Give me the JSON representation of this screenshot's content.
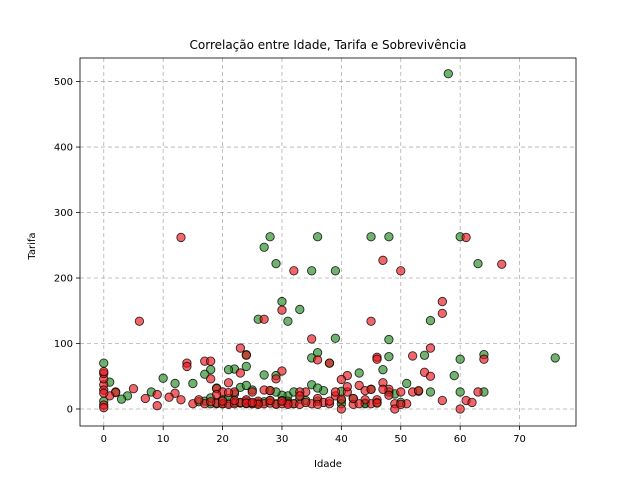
{
  "chart_data": {
    "type": "scatter",
    "title": "Correlação entre Idade, Tarifa e Sobrevivência",
    "xlabel": "Idade",
    "ylabel": "Tarifa",
    "xlim": [
      -4,
      79.5
    ],
    "ylim": [
      -26,
      536
    ],
    "xticks": [
      0,
      10,
      20,
      30,
      40,
      50,
      60,
      70
    ],
    "yticks": [
      0,
      100,
      200,
      300,
      400,
      500
    ],
    "grid": true,
    "colors": {
      "survived": "#228b22",
      "died": "#e8141a",
      "edge": "#000000"
    },
    "series": [
      {
        "key": "survived",
        "points": [
          [
            58,
            512
          ],
          [
            60,
            263
          ],
          [
            63,
            222
          ],
          [
            28,
            263
          ],
          [
            36,
            263
          ],
          [
            45,
            263
          ],
          [
            48,
            263
          ],
          [
            27,
            247
          ],
          [
            29,
            222
          ],
          [
            35,
            211
          ],
          [
            39,
            211
          ],
          [
            30,
            164
          ],
          [
            31,
            134
          ],
          [
            33,
            152
          ],
          [
            26,
            137
          ],
          [
            39,
            108
          ],
          [
            48,
            106
          ],
          [
            55,
            135
          ],
          [
            64,
            83
          ],
          [
            76,
            78
          ],
          [
            60,
            76
          ],
          [
            54,
            82
          ],
          [
            59,
            51
          ],
          [
            47,
            60
          ],
          [
            48,
            80
          ],
          [
            36,
            86
          ],
          [
            38,
            70
          ],
          [
            24,
            83
          ],
          [
            29,
            51
          ],
          [
            35,
            37
          ],
          [
            43,
            55
          ],
          [
            53,
            27
          ],
          [
            55,
            26
          ],
          [
            64,
            26
          ],
          [
            60,
            26
          ],
          [
            51,
            39
          ],
          [
            45,
            30
          ],
          [
            46,
            10
          ],
          [
            49,
            23
          ],
          [
            40,
            13
          ],
          [
            33,
            15
          ],
          [
            31,
            20
          ],
          [
            28,
            28
          ],
          [
            25,
            29
          ],
          [
            24,
            65
          ],
          [
            22,
            61
          ],
          [
            21,
            60
          ],
          [
            18,
            60
          ],
          [
            17,
            53
          ],
          [
            15,
            39
          ],
          [
            12,
            39
          ],
          [
            10,
            47
          ],
          [
            8,
            26
          ],
          [
            4,
            20
          ],
          [
            2,
            26
          ],
          [
            1,
            41
          ],
          [
            3,
            15
          ],
          [
            0,
            70
          ],
          [
            0,
            12
          ],
          [
            18,
            8
          ],
          [
            19,
            8
          ],
          [
            20,
            14
          ],
          [
            21,
            9
          ],
          [
            22,
            10
          ],
          [
            23,
            9
          ],
          [
            24,
            12
          ],
          [
            25,
            8
          ],
          [
            26,
            9
          ],
          [
            27,
            11
          ],
          [
            28,
            13
          ],
          [
            29,
            8
          ],
          [
            30,
            21
          ],
          [
            31,
            12
          ],
          [
            32,
            8
          ],
          [
            34,
            13
          ],
          [
            36,
            12
          ],
          [
            37,
            28
          ],
          [
            40,
            8
          ],
          [
            42,
            16
          ],
          [
            44,
            9
          ],
          [
            48,
            26
          ],
          [
            50,
            10
          ],
          [
            17,
            12
          ],
          [
            16,
            11
          ],
          [
            22,
            23
          ],
          [
            19,
            32
          ],
          [
            23,
            33
          ],
          [
            27,
            52
          ],
          [
            32,
            26
          ],
          [
            36,
            32
          ],
          [
            35,
            78
          ],
          [
            40,
            27
          ],
          [
            44,
            8
          ],
          [
            24,
            36
          ],
          [
            26,
            9
          ],
          [
            30,
            13
          ],
          [
            20,
            8
          ],
          [
            21,
            16
          ],
          [
            29,
            26
          ],
          [
            18,
            17
          ]
        ]
      },
      {
        "key": "died",
        "points": [
          [
            50,
            211
          ],
          [
            47,
            227
          ],
          [
            61,
            262
          ],
          [
            67,
            221
          ],
          [
            13,
            262
          ],
          [
            32,
            211
          ],
          [
            6,
            134
          ],
          [
            27,
            137
          ],
          [
            30,
            151
          ],
          [
            35,
            107
          ],
          [
            45,
            134
          ],
          [
            57,
            164
          ],
          [
            57,
            146
          ],
          [
            55,
            93
          ],
          [
            52,
            81
          ],
          [
            46,
            79
          ],
          [
            46,
            76
          ],
          [
            41,
            51
          ],
          [
            40,
            45
          ],
          [
            38,
            70
          ],
          [
            36,
            75
          ],
          [
            23,
            93
          ],
          [
            24,
            82
          ],
          [
            17,
            73
          ],
          [
            18,
            73
          ],
          [
            14,
            70
          ],
          [
            14,
            65
          ],
          [
            18,
            46
          ],
          [
            19,
            31
          ],
          [
            20,
            26
          ],
          [
            12,
            24
          ],
          [
            11,
            18
          ],
          [
            9,
            22
          ],
          [
            7,
            16
          ],
          [
            5,
            31
          ],
          [
            9,
            5
          ],
          [
            2,
            25
          ],
          [
            1,
            20
          ],
          [
            0,
            37
          ],
          [
            0,
            46
          ],
          [
            0,
            54
          ],
          [
            0,
            57
          ],
          [
            0,
            29
          ],
          [
            0,
            24
          ],
          [
            0,
            6
          ],
          [
            0,
            2
          ],
          [
            13,
            14
          ],
          [
            15,
            8
          ],
          [
            17,
            8
          ],
          [
            19,
            9
          ],
          [
            20,
            8
          ],
          [
            21,
            7
          ],
          [
            22,
            8
          ],
          [
            23,
            10
          ],
          [
            24,
            8
          ],
          [
            25,
            8
          ],
          [
            26,
            12
          ],
          [
            27,
            8
          ],
          [
            28,
            9
          ],
          [
            29,
            7
          ],
          [
            30,
            8
          ],
          [
            31,
            9
          ],
          [
            32,
            8
          ],
          [
            33,
            7
          ],
          [
            34,
            26
          ],
          [
            35,
            8
          ],
          [
            36,
            16
          ],
          [
            37,
            10
          ],
          [
            38,
            8
          ],
          [
            39,
            20
          ],
          [
            40,
            15
          ],
          [
            41,
            26
          ],
          [
            42,
            7
          ],
          [
            43,
            36
          ],
          [
            44,
            28
          ],
          [
            45,
            8
          ],
          [
            46,
            14
          ],
          [
            47,
            40
          ],
          [
            48,
            30
          ],
          [
            49,
            8
          ],
          [
            50,
            26
          ],
          [
            51,
            8
          ],
          [
            52,
            26
          ],
          [
            53,
            28
          ],
          [
            54,
            56
          ],
          [
            55,
            50
          ],
          [
            57,
            13
          ],
          [
            60,
            0
          ],
          [
            61,
            13
          ],
          [
            62,
            10
          ],
          [
            63,
            26
          ],
          [
            64,
            76
          ],
          [
            40,
            0
          ],
          [
            49,
            0
          ],
          [
            42,
            16
          ],
          [
            45,
            30
          ],
          [
            47,
            30
          ],
          [
            29,
            46
          ],
          [
            30,
            58
          ],
          [
            23,
            55
          ],
          [
            21,
            40
          ],
          [
            24,
            14
          ],
          [
            25,
            26
          ],
          [
            26,
            7
          ],
          [
            27,
            29
          ],
          [
            28,
            28
          ],
          [
            20,
            12
          ],
          [
            18,
            11
          ],
          [
            16,
            14
          ],
          [
            22,
            13
          ],
          [
            33,
            26
          ],
          [
            31,
            7
          ],
          [
            39,
            26
          ],
          [
            41,
            34
          ],
          [
            44,
            14
          ],
          [
            48,
            21
          ],
          [
            50,
            7
          ],
          [
            24,
            9
          ],
          [
            28,
            13
          ],
          [
            36,
            7
          ],
          [
            25,
            10
          ],
          [
            22,
            26
          ],
          [
            30,
            12
          ],
          [
            34,
            10
          ],
          [
            38,
            12
          ],
          [
            43,
            8
          ],
          [
            46,
            9
          ],
          [
            19,
            22
          ],
          [
            21,
            25
          ],
          [
            33,
            20
          ]
        ]
      }
    ]
  }
}
